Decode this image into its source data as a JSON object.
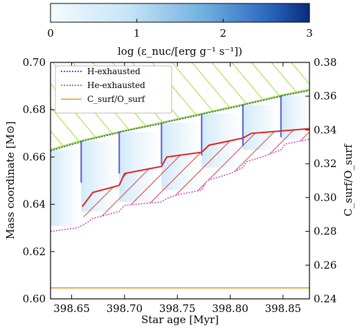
{
  "chart_data": {
    "type": "line",
    "colorbar": {
      "label": "log (ε_nuc/[erg g⁻¹ s⁻¹])",
      "range": [
        0,
        3
      ],
      "ticks": [
        "0",
        "1",
        "2",
        "3"
      ],
      "colors": [
        "#f4fbff",
        "#bfe0f5",
        "#6faee0",
        "#2c6bbf",
        "#0a2a7a"
      ]
    },
    "xaxis": {
      "label": "Star age [Myr]",
      "range": [
        398.63,
        398.875
      ],
      "ticks": [
        398.65,
        398.7,
        398.75,
        398.8,
        398.85
      ],
      "tick_labels": [
        "398.65",
        "398.70",
        "398.75",
        "398.80",
        "398.85"
      ]
    },
    "yaxis_left": {
      "label": "Mass coordinate [M⊙]",
      "range": [
        0.6,
        0.7
      ],
      "ticks": [
        0.6,
        0.62,
        0.64,
        0.66,
        0.68,
        0.7
      ],
      "tick_labels": [
        "0.60",
        "0.62",
        "0.64",
        "0.66",
        "0.68",
        "0.70"
      ]
    },
    "yaxis_right": {
      "label": "C_surf/O_surf",
      "range": [
        0.24,
        0.38
      ],
      "ticks": [
        0.24,
        0.26,
        0.28,
        0.3,
        0.32,
        0.34,
        0.36,
        0.38
      ],
      "tick_labels": [
        "0.24",
        "0.26",
        "0.28",
        "0.30",
        "0.32",
        "0.34",
        "0.36",
        "0.38"
      ]
    },
    "legend": {
      "placement": "upper-left",
      "entries": [
        {
          "label": "H-exhausted",
          "color": "#3a3ad0",
          "style": "dotted"
        },
        {
          "label": "He-exhausted",
          "color": "#c03ad0",
          "style": "dotted"
        },
        {
          "label": "C_surf/O_surf",
          "color": "#f0a040",
          "style": "solid"
        }
      ]
    },
    "pulses": [
      398.659,
      398.695,
      398.735,
      398.773,
      398.812,
      398.848
    ],
    "series": [
      {
        "name": "H-exhausted",
        "axis": "left",
        "color": "#3a3ad0",
        "x": [
          398.63,
          398.659,
          398.66,
          398.695,
          398.696,
          398.735,
          398.736,
          398.773,
          398.774,
          398.812,
          398.813,
          398.848,
          398.849,
          398.875
        ],
        "y": [
          0.6626,
          0.6664,
          0.6667,
          0.6703,
          0.6706,
          0.6741,
          0.6744,
          0.6779,
          0.6782,
          0.6818,
          0.6821,
          0.6856,
          0.6859,
          0.688
        ]
      },
      {
        "name": "He-exhausted",
        "axis": "left",
        "color": "#c03ad0",
        "x": [
          398.63,
          398.655,
          398.662,
          398.67,
          398.695,
          398.7,
          398.71,
          398.735,
          398.74,
          398.75,
          398.773,
          398.778,
          398.8,
          398.812,
          398.815,
          398.83,
          398.848,
          398.852,
          398.875
        ],
        "y": [
          0.6285,
          0.63,
          0.6315,
          0.634,
          0.637,
          0.6395,
          0.64,
          0.641,
          0.6425,
          0.644,
          0.646,
          0.65,
          0.653,
          0.6555,
          0.658,
          0.66,
          0.663,
          0.6655,
          0.6675
        ]
      },
      {
        "name": "C_surf/O_surf",
        "axis": "right",
        "color": "#f0a040",
        "x": [
          398.63,
          398.875
        ],
        "y": [
          0.2465,
          0.2465
        ]
      }
    ],
    "convective_envelope_base": {
      "color": "#9adf30",
      "x": [
        398.63,
        398.659,
        398.695,
        398.735,
        398.773,
        398.812,
        398.848,
        398.875
      ],
      "y": [
        0.663,
        0.6668,
        0.6706,
        0.6745,
        0.6783,
        0.6822,
        0.686,
        0.6885
      ]
    },
    "intershell_convection_top": {
      "color": "#e02020",
      "x": [
        398.66,
        398.67,
        398.695,
        398.7,
        398.735,
        398.74,
        398.773,
        398.78,
        398.812,
        398.82,
        398.848,
        398.875
      ],
      "y": [
        0.639,
        0.645,
        0.648,
        0.653,
        0.656,
        0.66,
        0.662,
        0.665,
        0.668,
        0.67,
        0.671,
        0.672
      ]
    }
  }
}
